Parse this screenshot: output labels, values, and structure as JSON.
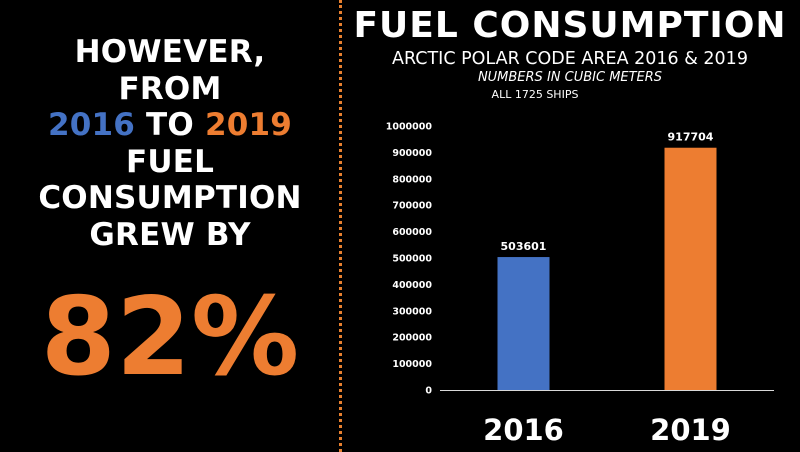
{
  "colors": {
    "accent_blue": "#4472C4",
    "accent_orange": "#ED7D31",
    "background": "#000000",
    "text": "#FFFFFF",
    "axis": "#d9d9d9"
  },
  "headline": {
    "line1": "HOWEVER,",
    "line2": "FROM",
    "year_from": "2016",
    "to_word": " TO ",
    "year_to": "2019",
    "line4": "FUEL",
    "line5": "CONSUMPTION",
    "line6": "GREW BY"
  },
  "growth_figure": "82%",
  "chart_data": {
    "type": "bar",
    "title": "FUEL CONSUMPTION",
    "subtitle": "ARCTIC POLAR CODE AREA 2016 & 2019",
    "units_note": "NUMBERS IN CUBIC METERS",
    "ships_note": "ALL 1725 SHIPS",
    "categories": [
      "2016",
      "2019"
    ],
    "values": [
      503601,
      917704
    ],
    "value_labels": [
      "503601",
      "917704"
    ],
    "bar_colors": [
      "#4472C4",
      "#ED7D31"
    ],
    "ylim": [
      0,
      1000000
    ],
    "yticks": [
      0,
      100000,
      200000,
      300000,
      400000,
      500000,
      600000,
      700000,
      800000,
      900000,
      1000000
    ],
    "ytick_labels": [
      "0",
      "100000",
      "200000",
      "300000",
      "400000",
      "500000",
      "600000",
      "700000",
      "800000",
      "900000",
      "1000000"
    ],
    "grid": false,
    "xlabel": "",
    "ylabel": ""
  }
}
